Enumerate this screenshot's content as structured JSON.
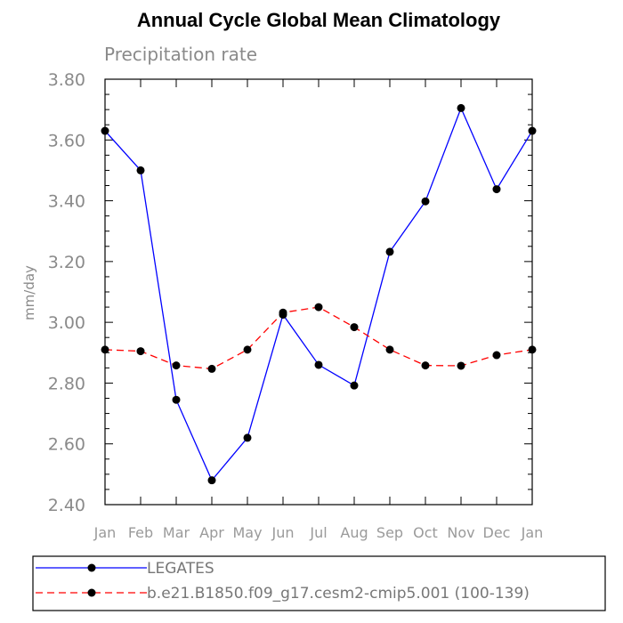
{
  "chart_data": {
    "type": "line",
    "title": "Annual Cycle Global Mean Climatology",
    "subtitle": "Precipitation rate",
    "xlabel": "",
    "ylabel": "mm/day",
    "categories": [
      "Jan",
      "Feb",
      "Mar",
      "Apr",
      "May",
      "Jun",
      "Jul",
      "Aug",
      "Sep",
      "Oct",
      "Nov",
      "Dec",
      "Jan"
    ],
    "ylim": [
      2.4,
      3.8
    ],
    "yticks": [
      "2.40",
      "2.60",
      "2.80",
      "3.00",
      "3.20",
      "3.40",
      "3.60",
      "3.80"
    ],
    "ytick_values": [
      2.4,
      2.6,
      2.8,
      3.0,
      3.2,
      3.4,
      3.6,
      3.8
    ],
    "series": [
      {
        "name": "LEGATES",
        "color": "#0000ff",
        "style": "solid",
        "values": [
          3.63,
          3.5,
          2.745,
          2.48,
          2.62,
          3.025,
          2.86,
          2.792,
          3.232,
          3.398,
          3.705,
          3.438,
          3.63
        ]
      },
      {
        "name": "b.e21.B1850.f09_g17.cesm2-cmip5.001 (100-139)",
        "color": "#ff0000",
        "style": "dashed",
        "values": [
          2.91,
          2.905,
          2.858,
          2.847,
          2.91,
          3.032,
          3.05,
          2.984,
          2.91,
          2.858,
          2.857,
          2.892,
          2.91
        ]
      }
    ],
    "grid": false,
    "legend": "bottom"
  }
}
